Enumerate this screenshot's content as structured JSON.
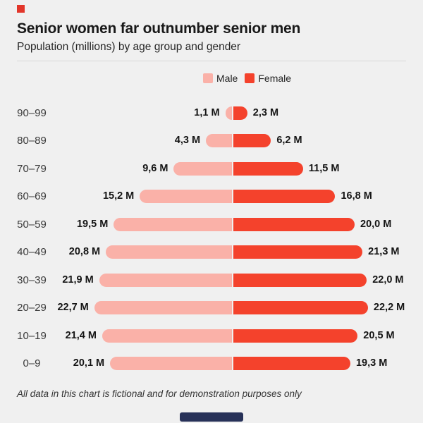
{
  "header": {
    "title": "Senior women far outnumber senior men",
    "subtitle": "Population (millions) by age group and gender"
  },
  "legend": {
    "male_label": "Male",
    "female_label": "Female"
  },
  "footer": {
    "note": "All data in this chart is fictional and for demonstration purposes only"
  },
  "colors": {
    "male": "#fab1a8",
    "female": "#f4422c",
    "background": "#f0f0f0",
    "brand_square": "#e2362a",
    "bottom_bar": "#273158",
    "divider": "#d8d8d8"
  },
  "chart_data": {
    "type": "bar",
    "subtype": "diverging-horizontal-population-pyramid",
    "title": "Senior women far outnumber senior men",
    "subtitle": "Population (millions) by age group and gender",
    "unit": "millions",
    "categories": [
      "90–99",
      "80–89",
      "70–79",
      "60–69",
      "50–59",
      "40–49",
      "30–39",
      "20–29",
      "10–19",
      "0–9"
    ],
    "series": [
      {
        "name": "Male",
        "color": "#fab1a8",
        "side": "left",
        "values": [
          1.1,
          4.3,
          9.6,
          15.2,
          19.5,
          20.8,
          21.9,
          22.7,
          21.4,
          20.1
        ],
        "labels": [
          "1,1 M",
          "4,3 M",
          "9,6 M",
          "15,2 M",
          "19,5 M",
          "20,8 M",
          "21,9 M",
          "22,7 M",
          "21,4 M",
          "20,1 M"
        ]
      },
      {
        "name": "Female",
        "color": "#f4422c",
        "side": "right",
        "values": [
          2.3,
          6.2,
          11.5,
          16.8,
          20.0,
          21.3,
          22.0,
          22.2,
          20.5,
          19.3
        ],
        "labels": [
          "2,3 M",
          "6,2 M",
          "11,5 M",
          "16,8 M",
          "20,0 M",
          "21,3 M",
          "22,0 M",
          "22,2 M",
          "20,5 M",
          "19,3 M"
        ]
      }
    ],
    "value_axis": {
      "min": 0,
      "max": 23,
      "axis_shown": false,
      "values_shown_as": "data labels"
    },
    "legend_position": "top-center",
    "grid": false,
    "footnote": "All data in this chart is fictional and for demonstration purposes only"
  }
}
